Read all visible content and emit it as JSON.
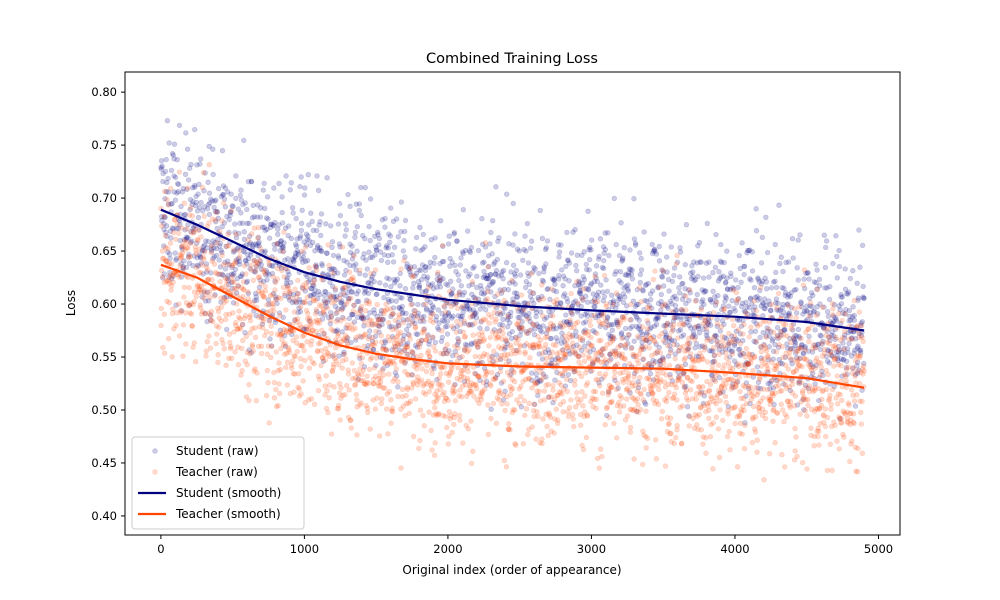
{
  "chart_data": {
    "type": "scatter",
    "title": "Combined Training Loss",
    "xlabel": "Original index (order of appearance)",
    "ylabel": "Loss",
    "xlim": [
      -250,
      5150
    ],
    "ylim": [
      0.382,
      0.819
    ],
    "x_ticks": [
      0,
      1000,
      2000,
      3000,
      4000,
      5000
    ],
    "y_ticks": [
      0.4,
      0.45,
      0.5,
      0.55,
      0.6,
      0.65,
      0.7,
      0.75,
      0.8
    ],
    "grid": false,
    "legend_position": "lower-left",
    "series": [
      {
        "name": "Student (raw)",
        "kind": "scatter",
        "color": "#000080",
        "alpha": 0.2,
        "x_range": [
          0,
          4900
        ],
        "n_points": 2450,
        "y_range": [
          0.4,
          0.8
        ],
        "y_center_follows": "Student (smooth)",
        "y_spread_sd": 0.065
      },
      {
        "name": "Teacher (raw)",
        "kind": "scatter",
        "color": "#FF4500",
        "alpha": 0.2,
        "x_range": [
          0,
          4900
        ],
        "n_points": 2450,
        "y_range": [
          0.4,
          0.78
        ],
        "y_center_follows": "Teacher (smooth)",
        "y_spread_sd": 0.065
      },
      {
        "name": "Student (smooth)",
        "kind": "line",
        "color": "#000080",
        "x": [
          0,
          250,
          500,
          750,
          1000,
          1250,
          1500,
          1750,
          2000,
          2500,
          3000,
          3500,
          4000,
          4500,
          4900
        ],
        "y": [
          0.689,
          0.675,
          0.659,
          0.643,
          0.63,
          0.621,
          0.614,
          0.609,
          0.604,
          0.598,
          0.594,
          0.591,
          0.588,
          0.583,
          0.575
        ]
      },
      {
        "name": "Teacher (smooth)",
        "kind": "line",
        "color": "#FF4500",
        "x": [
          0,
          250,
          500,
          750,
          1000,
          1250,
          1500,
          1750,
          2000,
          2500,
          3000,
          3500,
          4000,
          4500,
          4900
        ],
        "y": [
          0.637,
          0.625,
          0.607,
          0.589,
          0.573,
          0.561,
          0.553,
          0.548,
          0.544,
          0.541,
          0.54,
          0.539,
          0.535,
          0.53,
          0.521
        ]
      }
    ]
  }
}
